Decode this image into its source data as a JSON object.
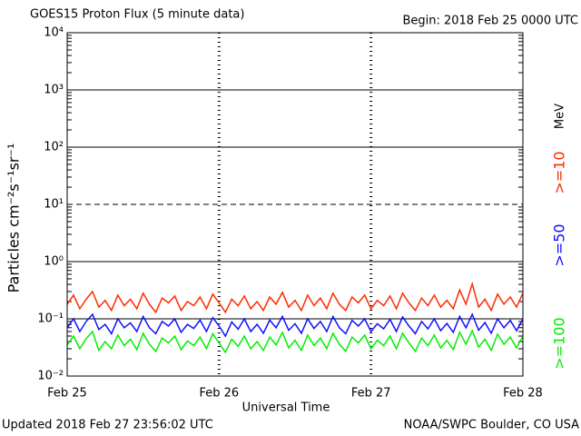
{
  "chart_data": {
    "type": "line",
    "title": "GOES15 Proton Flux (5 minute data)",
    "subtitle": "Begin: 2018 Feb 25 0000 UTC",
    "y_label": "Particles cm⁻²s⁻¹sr⁻¹",
    "x_label": "Universal Time",
    "footer_left": "Updated 2018 Feb 27 23:56:02 UTC",
    "footer_right": "NOAA/SWPC Boulder, CO USA",
    "unit_label": "MeV",
    "log_y": true,
    "grid": true,
    "dashed_line_at": 10,
    "xlim": [
      0,
      72
    ],
    "xticks": [
      {
        "value": 0,
        "label": "Feb 25"
      },
      {
        "value": 24,
        "label": "Feb 26"
      },
      {
        "value": 48,
        "label": "Feb 27"
      },
      {
        "value": 72,
        "label": "Feb 28"
      }
    ],
    "ylim": [
      0.01,
      10000
    ],
    "yticks": [
      {
        "value": 0.01,
        "label": "10⁻²"
      },
      {
        "value": 0.1,
        "label": "10⁻¹"
      },
      {
        "value": 1,
        "label": "10⁰"
      },
      {
        "value": 10,
        "label": "10¹"
      },
      {
        "value": 100,
        "label": "10²"
      },
      {
        "value": 1000,
        "label": "10³"
      },
      {
        "value": 10000,
        "label": "10⁴"
      }
    ],
    "x": [
      0,
      1,
      2,
      3,
      4,
      5,
      6,
      7,
      8,
      9,
      10,
      11,
      12,
      13,
      14,
      15,
      16,
      17,
      18,
      19,
      20,
      21,
      22,
      23,
      24,
      25,
      26,
      27,
      28,
      29,
      30,
      31,
      32,
      33,
      34,
      35,
      36,
      37,
      38,
      39,
      40,
      41,
      42,
      43,
      44,
      45,
      46,
      47,
      48,
      49,
      50,
      51,
      52,
      53,
      54,
      55,
      56,
      57,
      58,
      59,
      60,
      61,
      62,
      63,
      64,
      65,
      66,
      67,
      68,
      69,
      70,
      71,
      72
    ],
    "series": [
      {
        "name": ">=10",
        "color": "#ff2a00",
        "values": [
          0.18,
          0.26,
          0.15,
          0.22,
          0.3,
          0.16,
          0.21,
          0.14,
          0.26,
          0.17,
          0.22,
          0.15,
          0.28,
          0.18,
          0.13,
          0.23,
          0.19,
          0.25,
          0.14,
          0.2,
          0.17,
          0.24,
          0.15,
          0.27,
          0.19,
          0.13,
          0.22,
          0.17,
          0.25,
          0.15,
          0.2,
          0.14,
          0.24,
          0.18,
          0.29,
          0.16,
          0.21,
          0.14,
          0.26,
          0.17,
          0.23,
          0.15,
          0.28,
          0.18,
          0.14,
          0.24,
          0.19,
          0.26,
          0.15,
          0.21,
          0.17,
          0.25,
          0.15,
          0.28,
          0.19,
          0.14,
          0.23,
          0.17,
          0.26,
          0.16,
          0.21,
          0.15,
          0.32,
          0.18,
          0.41,
          0.16,
          0.22,
          0.14,
          0.27,
          0.18,
          0.24,
          0.16,
          0.28
        ]
      },
      {
        "name": ">=50",
        "color": "#1010ff",
        "values": [
          0.07,
          0.1,
          0.06,
          0.09,
          0.12,
          0.065,
          0.08,
          0.055,
          0.1,
          0.07,
          0.085,
          0.06,
          0.11,
          0.07,
          0.055,
          0.09,
          0.075,
          0.1,
          0.058,
          0.08,
          0.068,
          0.095,
          0.06,
          0.105,
          0.075,
          0.05,
          0.088,
          0.066,
          0.1,
          0.06,
          0.08,
          0.056,
          0.095,
          0.07,
          0.11,
          0.063,
          0.082,
          0.056,
          0.1,
          0.068,
          0.09,
          0.06,
          0.11,
          0.07,
          0.055,
          0.094,
          0.075,
          0.1,
          0.06,
          0.082,
          0.067,
          0.098,
          0.06,
          0.108,
          0.075,
          0.055,
          0.09,
          0.067,
          0.1,
          0.062,
          0.083,
          0.058,
          0.11,
          0.07,
          0.12,
          0.063,
          0.086,
          0.056,
          0.1,
          0.07,
          0.094,
          0.062,
          0.1
        ]
      },
      {
        "name": ">=100",
        "color": "#00ee00",
        "values": [
          0.035,
          0.05,
          0.03,
          0.045,
          0.06,
          0.028,
          0.04,
          0.03,
          0.052,
          0.034,
          0.044,
          0.029,
          0.056,
          0.036,
          0.027,
          0.046,
          0.038,
          0.05,
          0.029,
          0.041,
          0.034,
          0.048,
          0.03,
          0.055,
          0.038,
          0.026,
          0.044,
          0.033,
          0.05,
          0.03,
          0.04,
          0.028,
          0.048,
          0.035,
          0.058,
          0.031,
          0.042,
          0.028,
          0.052,
          0.034,
          0.046,
          0.03,
          0.056,
          0.036,
          0.027,
          0.048,
          0.038,
          0.052,
          0.03,
          0.042,
          0.034,
          0.05,
          0.03,
          0.056,
          0.038,
          0.027,
          0.046,
          0.034,
          0.052,
          0.031,
          0.042,
          0.029,
          0.058,
          0.036,
          0.062,
          0.032,
          0.044,
          0.028,
          0.054,
          0.036,
          0.048,
          0.031,
          0.05
        ]
      }
    ]
  }
}
